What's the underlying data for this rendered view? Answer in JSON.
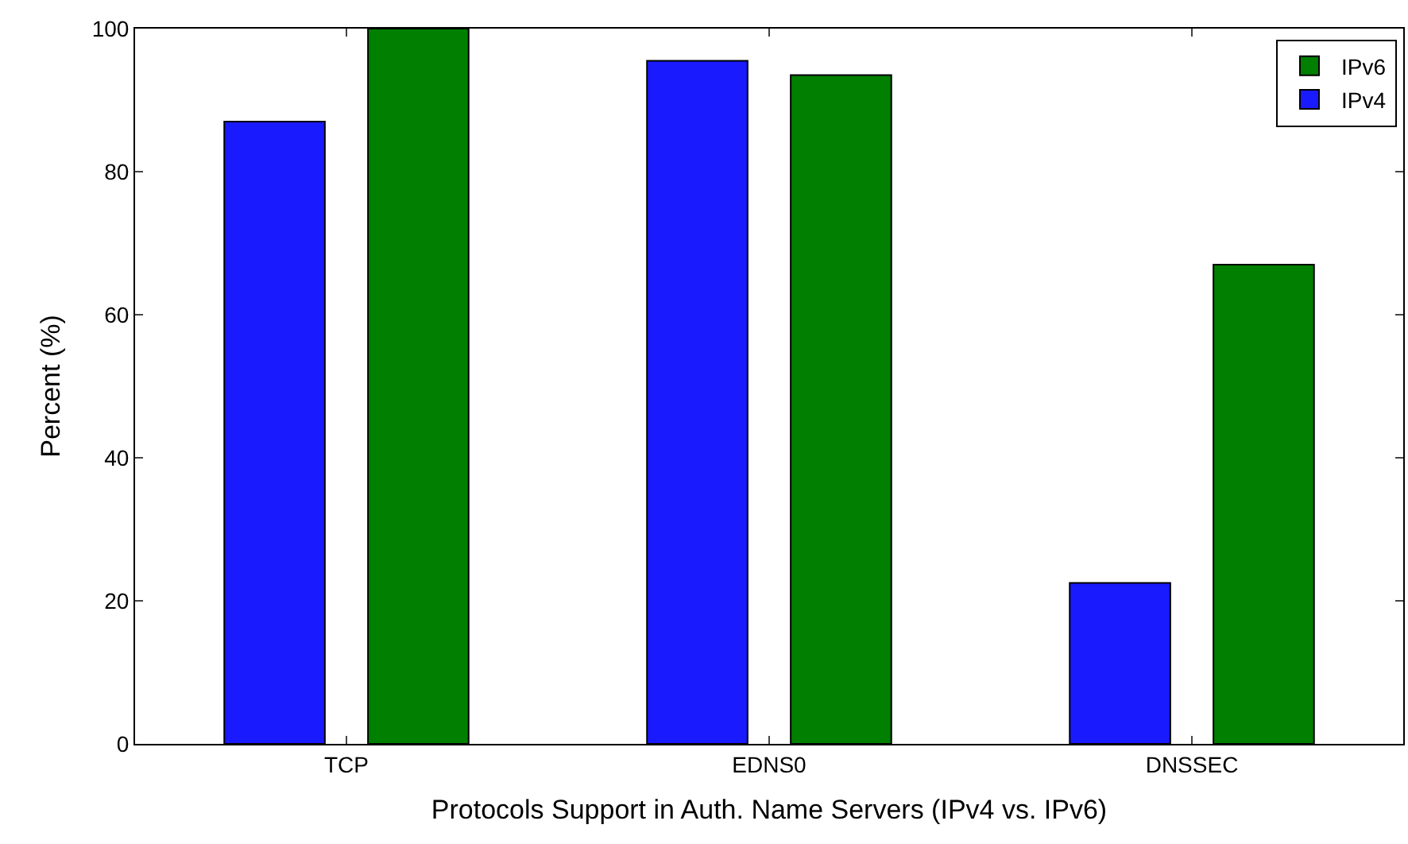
{
  "chart_data": {
    "type": "bar",
    "xlabel": "Protocols Support in Auth. Name Servers (IPv4 vs. IPv6)",
    "ylabel": "Percent (%)",
    "categories": [
      "TCP",
      "EDNS0",
      "DNSSEC"
    ],
    "series": [
      {
        "name": "IPv4",
        "color": "#1a1aff",
        "values": [
          87,
          95.5,
          22.5
        ]
      },
      {
        "name": "IPv6",
        "color": "#007f00",
        "values": [
          100,
          93.5,
          67
        ]
      }
    ],
    "ylim": [
      0,
      100
    ],
    "yticks": [
      0,
      20,
      40,
      60,
      80,
      100
    ],
    "legend": "top right"
  }
}
